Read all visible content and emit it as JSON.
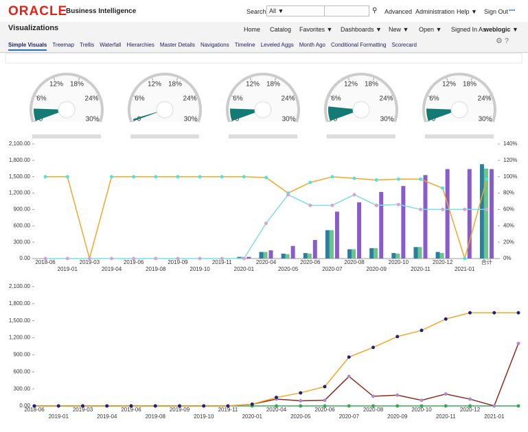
{
  "header": {
    "brand": "ORACLE",
    "product": "Business Intelligence",
    "search_label": "Search",
    "search_scope": "All ▼",
    "links": [
      "Advanced",
      "Administration",
      "Help ▼",
      "Sign Out"
    ]
  },
  "menu": {
    "title": "Visualizations",
    "items": [
      "Home",
      "Catalog",
      "Favorites ▼",
      "Dashboards ▼",
      "New ▼",
      "Open ▼"
    ],
    "signed_in_label": "Signed In As",
    "user": "weblogic ▼"
  },
  "tabs": [
    "Simple Visuals",
    "Treemap",
    "Trellis",
    "Waterfall",
    "Hierarchies",
    "Master Details",
    "Navigations",
    "Timeline",
    "Leveled Aggs",
    "Month Ago",
    "Conditional Formatting",
    "Scorecard"
  ],
  "gauges": {
    "ticks": [
      0,
      {
        "value": 6,
        "label": "6%"
      },
      {
        "value": 12,
        "label": "12%"
      },
      {
        "value": 18,
        "label": "18%"
      },
      {
        "value": 24,
        "label": "24%"
      },
      {
        "value": 30,
        "label": "30%"
      }
    ],
    "range": [
      0,
      30
    ],
    "color": "#137a74",
    "values": [
      3,
      0.5,
      3,
      3.5,
      3
    ]
  },
  "chart_data": [
    {
      "type": "combo",
      "categories": [
        "2018-06",
        "2019-01",
        "2019-03",
        "2019-04",
        "2019-06",
        "2019-08",
        "2019-09",
        "2019-10",
        "2019-11",
        "2020-01",
        "2020-04",
        "2020-05",
        "2020-06",
        "2020-07",
        "2020-08",
        "2020-09",
        "2020-10",
        "2020-11",
        "2020-12",
        "2021-01",
        "合计"
      ],
      "ylim": [
        0,
        2100
      ],
      "yticks": [
        {
          "value": 0,
          "label": "0.00"
        },
        {
          "value": 300,
          "label": "300.00"
        },
        {
          "value": 600,
          "label": "600.00"
        },
        {
          "value": 900,
          "label": "900.00"
        },
        {
          "value": 1200,
          "label": "1,200.00"
        },
        {
          "value": 1500,
          "label": "1,500.00"
        },
        {
          "value": 1800,
          "label": "1,800.00"
        },
        {
          "value": 2100,
          "label": "2,100.00"
        }
      ],
      "y2lim": [
        0,
        140
      ],
      "y2ticks": [
        {
          "value": 0,
          "label": "0%"
        },
        {
          "value": 20,
          "label": "20%"
        },
        {
          "value": 40,
          "label": "40%"
        },
        {
          "value": 60,
          "label": "60%"
        },
        {
          "value": 80,
          "label": "80%"
        },
        {
          "value": 100,
          "label": "100%"
        },
        {
          "value": 120,
          "label": "120%"
        },
        {
          "value": 140,
          "label": "140%"
        }
      ],
      "series": [
        {
          "type": "bar",
          "color": "#2a7ea0",
          "values": [
            0,
            0,
            0,
            0,
            0,
            0,
            0,
            0,
            0,
            30,
            120,
            90,
            100,
            520,
            170,
            190,
            100,
            210,
            120,
            0,
            1730
          ]
        },
        {
          "type": "bar",
          "color": "#6cc48a",
          "values": [
            0,
            0,
            0,
            0,
            0,
            0,
            0,
            0,
            0,
            30,
            120,
            80,
            90,
            520,
            170,
            190,
            90,
            210,
            100,
            0,
            1650
          ]
        },
        {
          "type": "bar",
          "color": "#8a5cc9",
          "values": [
            0,
            0,
            0,
            0,
            0,
            0,
            0,
            0,
            0,
            30,
            150,
            230,
            340,
            860,
            1030,
            1220,
            1330,
            1530,
            1640,
            1640,
            1640
          ]
        },
        {
          "type": "line",
          "axis": "y2",
          "color": "#f5a623",
          "marker_color": "#4de3e3",
          "values": [
            100,
            100,
            0,
            100,
            100,
            100,
            100,
            100,
            100,
            100,
            99,
            80,
            93,
            100,
            98,
            96,
            97,
            97,
            86,
            0,
            97
          ]
        },
        {
          "type": "line",
          "axis": "y2",
          "color": "#7fdde0",
          "marker_color": "#d6a3d6",
          "values": [
            0,
            0,
            0,
            0,
            0,
            0,
            0,
            0,
            0,
            0,
            43,
            78,
            65,
            65,
            78,
            65,
            66,
            60,
            60,
            60,
            60
          ]
        }
      ]
    },
    {
      "type": "line",
      "categories": [
        "2018-06",
        "2019-01",
        "2019-03",
        "2019-04",
        "2019-06",
        "2019-08",
        "2019-09",
        "2019-10",
        "2019-11",
        "2020-01",
        "2020-04",
        "2020-05",
        "2020-06",
        "2020-07",
        "2020-08",
        "2020-09",
        "2020-10",
        "2020-11",
        "2020-12",
        "2021-01",
        null
      ],
      "ylim": [
        0,
        2100
      ],
      "yticks": [
        {
          "value": 0,
          "label": "0.00"
        },
        {
          "value": 300,
          "label": "300.00"
        },
        {
          "value": 600,
          "label": "600.00"
        },
        {
          "value": 900,
          "label": "900.00"
        },
        {
          "value": 1200,
          "label": "1,200.00"
        },
        {
          "value": 1500,
          "label": "1,500.00"
        },
        {
          "value": 1800,
          "label": "1,800.00"
        },
        {
          "value": 2100,
          "label": "2,100.00"
        }
      ],
      "series": [
        {
          "color": "#3aa655",
          "marker_color": "#3aa655",
          "values": [
            0,
            0,
            0,
            0,
            0,
            0,
            0,
            0,
            0,
            0,
            0,
            0,
            0,
            0,
            0,
            0,
            0,
            0,
            0,
            0,
            0
          ]
        },
        {
          "color": "#8b2a1a",
          "marker_color": "#a98bd0",
          "values": [
            0,
            0,
            0,
            0,
            0,
            0,
            0,
            0,
            0,
            30,
            120,
            90,
            100,
            520,
            170,
            190,
            100,
            210,
            120,
            0,
            1100
          ]
        },
        {
          "color": "#f5a623",
          "marker_color": "#1a237e",
          "values": [
            0,
            0,
            0,
            0,
            0,
            0,
            0,
            0,
            0,
            30,
            150,
            230,
            340,
            860,
            1030,
            1220,
            1330,
            1530,
            1640,
            1640,
            1640
          ]
        }
      ]
    }
  ]
}
